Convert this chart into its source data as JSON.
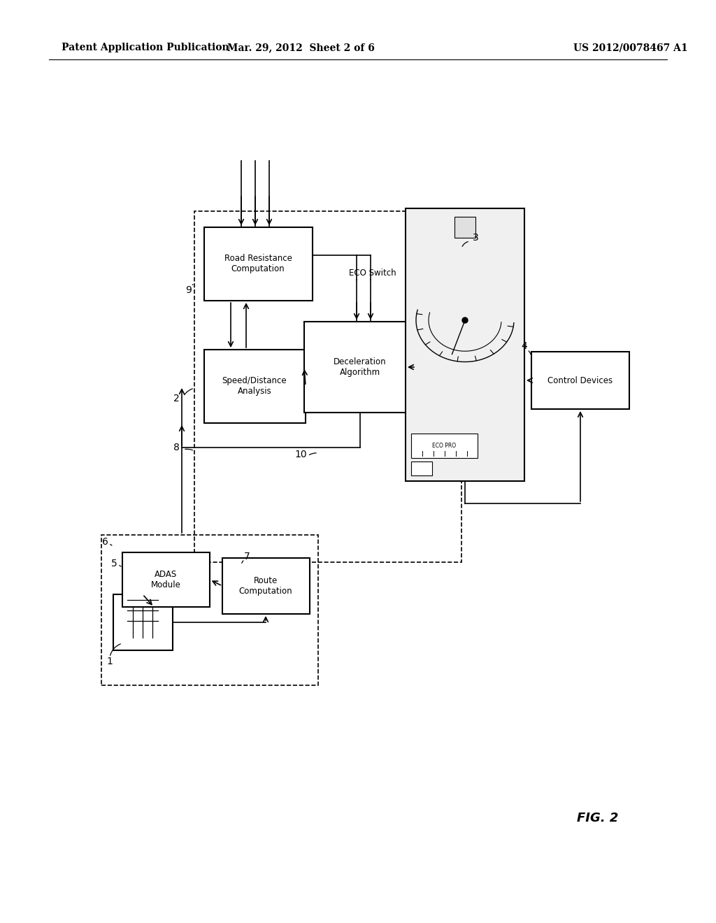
{
  "bg_color": "#ffffff",
  "header_left": "Patent Application Publication",
  "header_mid": "Mar. 29, 2012  Sheet 2 of 6",
  "header_right": "US 2012/0078467 A1",
  "fig_label": "FIG. 2"
}
